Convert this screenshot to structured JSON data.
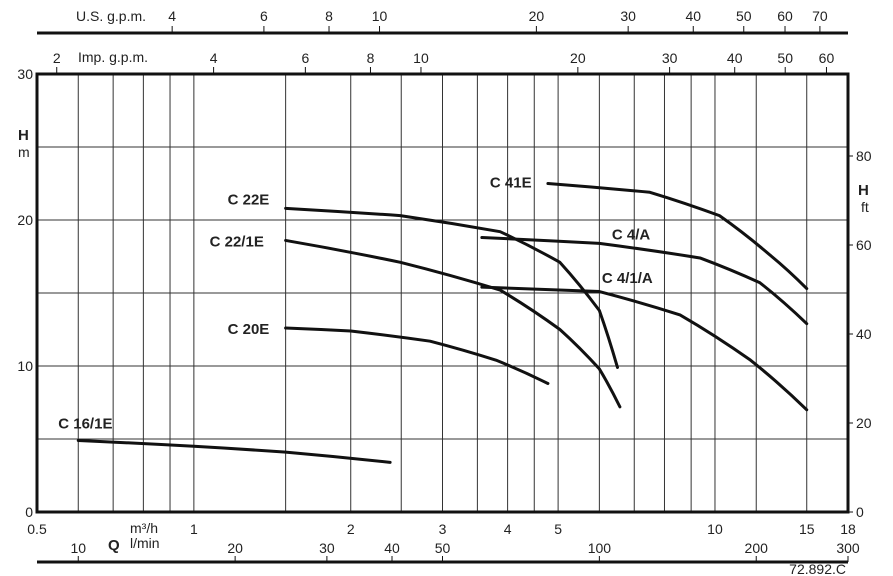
{
  "chart_data": {
    "type": "line",
    "x_scale": "log",
    "xlim": [
      0.5,
      18
    ],
    "ylim": [
      0,
      30
    ],
    "xlabel_symbol": "Q",
    "xlabel_units": [
      "m³/h",
      "l/min"
    ],
    "ylabel": "H",
    "ylabel_unit": "m",
    "y2label": "H",
    "y2label_unit": "ft",
    "x_ticks": [
      "0.5",
      "1",
      "2",
      "3",
      "4",
      "5",
      "10",
      "15",
      "18"
    ],
    "x_tick_values": [
      0.5,
      1,
      2,
      3,
      4,
      5,
      10,
      15,
      18
    ],
    "lmin_ticks": [
      "10",
      "20",
      "30",
      "40",
      "50",
      "100",
      "200",
      "300"
    ],
    "lmin_tick_values": [
      10,
      20,
      30,
      40,
      50,
      100,
      200,
      300
    ],
    "us_gpm_label": "U.S. g.p.m.",
    "us_gpm_ticks": [
      "4",
      "6",
      "8",
      "10",
      "20",
      "30",
      "40",
      "50",
      "60",
      "70"
    ],
    "us_gpm_tick_values": [
      4,
      6,
      8,
      10,
      20,
      30,
      40,
      50,
      60,
      70
    ],
    "imp_gpm_label": "Imp. g.p.m.",
    "imp_gpm_ticks": [
      "2",
      "4",
      "6",
      "8",
      "10",
      "20",
      "30",
      "40",
      "50",
      "60"
    ],
    "imp_gpm_tick_values": [
      2,
      4,
      6,
      8,
      10,
      20,
      30,
      40,
      50,
      60
    ],
    "y_ticks": [
      "0",
      "10",
      "20",
      "30"
    ],
    "y_tick_values": [
      0,
      10,
      20,
      30
    ],
    "y2_ticks": [
      "0",
      "20",
      "40",
      "60",
      "80"
    ],
    "y2_tick_values": [
      0,
      20,
      40,
      60,
      80
    ],
    "grid": true,
    "series": [
      {
        "name": "C 16/1E",
        "x": [
          0.6,
          1.0,
          1.5,
          2.38
        ],
        "y": [
          4.9,
          4.5,
          4.1,
          3.4
        ]
      },
      {
        "name": "C 20E",
        "x": [
          1.5,
          2.0,
          2.84,
          3.8,
          4.78
        ],
        "y": [
          12.6,
          12.4,
          11.7,
          10.4,
          8.8
        ]
      },
      {
        "name": "C 22/1E",
        "x": [
          1.5,
          2.49,
          3.87,
          5.04,
          6.0,
          6.57
        ],
        "y": [
          18.6,
          17.1,
          15.2,
          12.5,
          9.8,
          7.2
        ]
      },
      {
        "name": "C 22E",
        "x": [
          1.5,
          2.49,
          3.87,
          5.04,
          6.0,
          6.5
        ],
        "y": [
          20.8,
          20.3,
          19.2,
          17.1,
          13.8,
          9.9
        ]
      },
      {
        "name": "C 41E",
        "x": [
          4.78,
          7.5,
          10.2,
          12.75,
          15
        ],
        "y": [
          22.5,
          21.9,
          20.3,
          17.6,
          15.3
        ]
      },
      {
        "name": "C 4/A",
        "x": [
          3.57,
          6.0,
          9.36,
          12.2,
          15
        ],
        "y": [
          18.8,
          18.4,
          17.4,
          15.7,
          12.9
        ]
      },
      {
        "name": "C 4/1/A",
        "x": [
          3.57,
          6.0,
          8.57,
          11.7,
          15
        ],
        "y": [
          15.4,
          15.1,
          13.5,
          10.4,
          7.0
        ]
      }
    ],
    "code": "72.892.C"
  }
}
